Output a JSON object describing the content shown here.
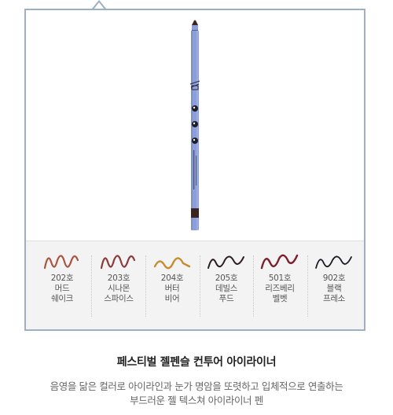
{
  "product": {
    "name": "페스티벌 젤펜슬 컨투어 아이라이너",
    "description_line1": "음영을 닮은 컬러로 아이라인과 눈가 명암을 또렷하고 입체적으로 연출하는",
    "description_line2": "부드러운 젤 텍스쳐 아이라이너 펜",
    "pencil_body_color": "#8d9fd9",
    "pencil_tip_color": "#3a2520"
  },
  "swatches": [
    {
      "code": "202호",
      "line1": "머드",
      "line2": "쉐이크",
      "color": "#a8553f"
    },
    {
      "code": "203호",
      "line1": "시나몬",
      "line2": "스파이스",
      "color": "#8a3a3a"
    },
    {
      "code": "204호",
      "line1": "버터",
      "line2": "비어",
      "color": "#c98a2e"
    },
    {
      "code": "205호",
      "line1": "데빌스",
      "line2": "푸드",
      "color": "#2a1e1e"
    },
    {
      "code": "501호",
      "line1": "리즈베리",
      "line2": "벨벳",
      "color": "#7a1f2a"
    },
    {
      "code": "902호",
      "line1": "블랙",
      "line2": "프레소",
      "color": "#1a1a22"
    }
  ],
  "colors": {
    "frame_border": "#9bb0c4",
    "swatch_panel_bg": "#f3f3f3"
  }
}
